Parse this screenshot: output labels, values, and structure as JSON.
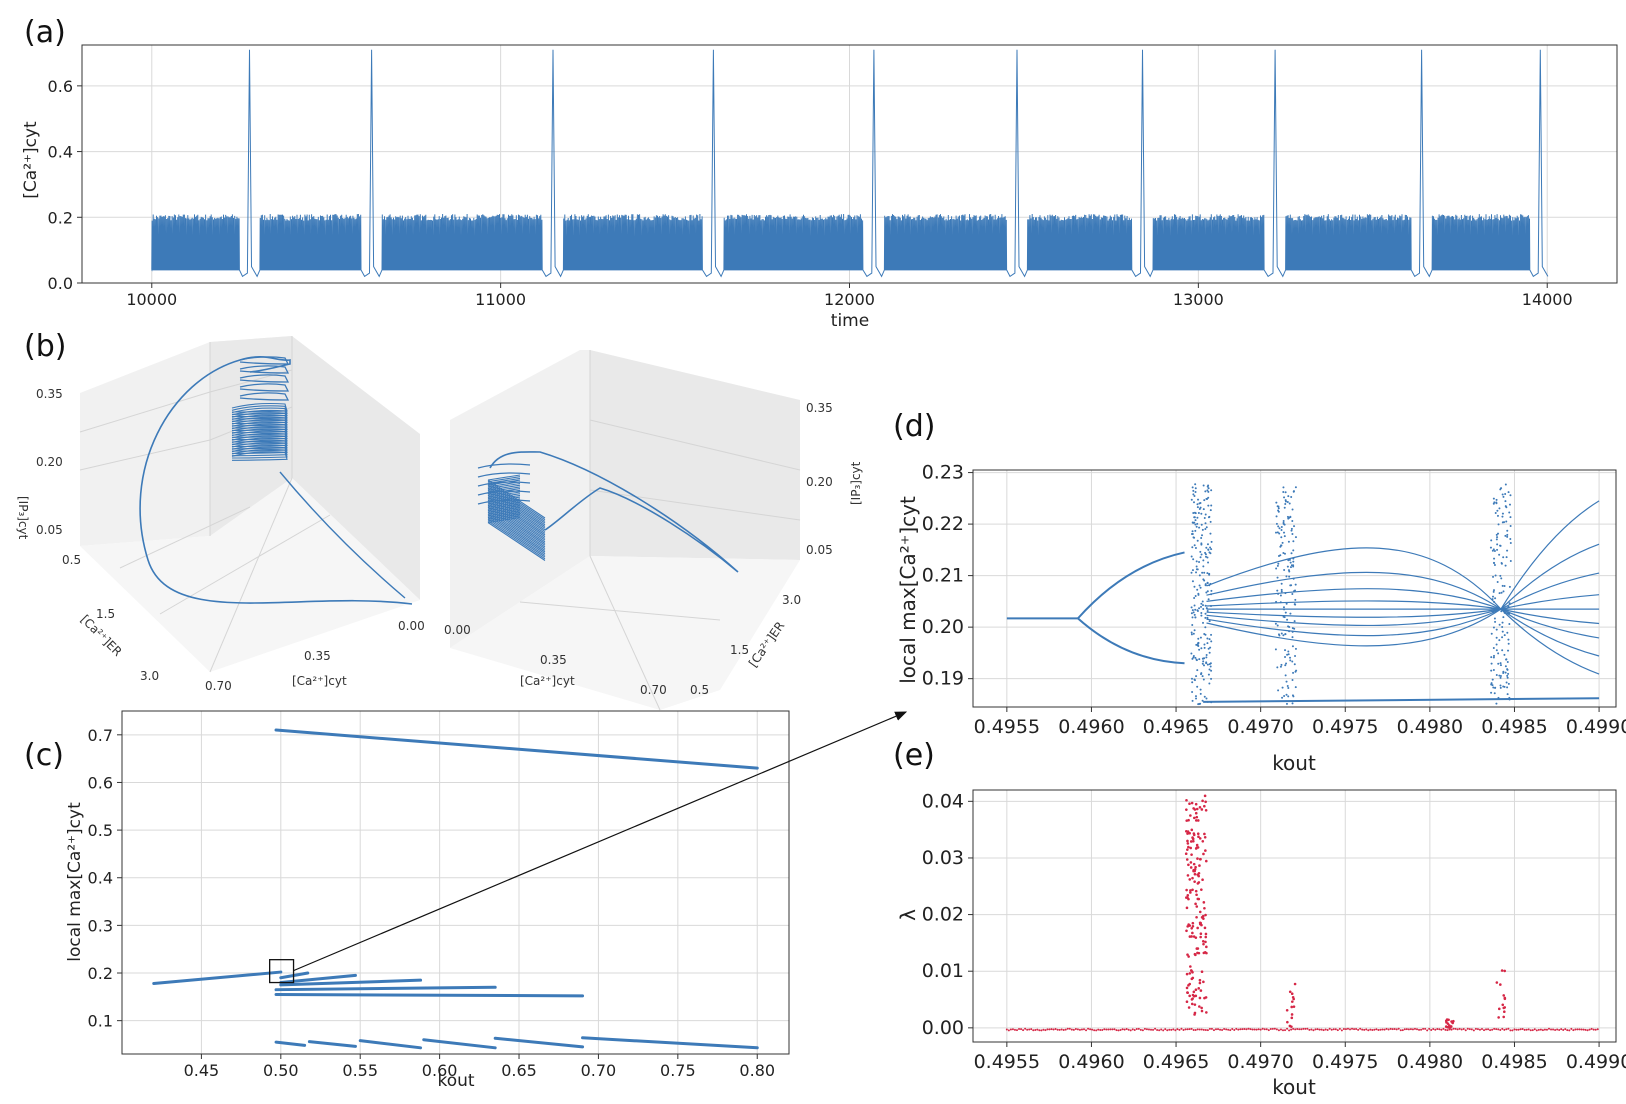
{
  "panels": {
    "a": "(a)",
    "b": "(b)",
    "c": "(c)",
    "d": "(d)",
    "e": "(e)"
  },
  "colors": {
    "series": "#3d7ab8",
    "lyapunov": "#d62746",
    "grid": "#d9d9d9"
  },
  "chart_data": [
    {
      "id": "a",
      "type": "line",
      "title": "",
      "xlabel": "time",
      "ylabel": "[Ca²⁺]cyt",
      "xlim": [
        9800,
        14200
      ],
      "ylim": [
        0.0,
        0.7
      ],
      "xticks": [
        "10000",
        "11000",
        "12000",
        "13000",
        "14000"
      ],
      "yticks": [
        "0.0",
        "0.2",
        "0.4",
        "0.6"
      ],
      "burst_spike_times": [
        10280,
        10630,
        11150,
        11610,
        12070,
        12480,
        12840,
        13220,
        13640,
        13980
      ],
      "burst_spike_peak": 0.71,
      "fast_oscillation_max": 0.2,
      "baseline": 0.04
    },
    {
      "id": "b-left",
      "type": "line",
      "xlabel": "[Ca²⁺]cyt",
      "ylabel": "[Ca²⁺]ER",
      "zlabel": "[IP₃]cyt",
      "xticks": [
        "0.70",
        "0.35",
        "0.00"
      ],
      "yticks": [
        "0.5",
        "1.5",
        "3.0"
      ],
      "zticks": [
        "0.05",
        "0.20",
        "0.35"
      ]
    },
    {
      "id": "b-right",
      "type": "line",
      "xlabel": "[Ca²⁺]cyt",
      "ylabel": "[Ca²⁺]ER",
      "zlabel": "[IP₃]cyt",
      "xticks": [
        "0.00",
        "0.35",
        "0.70"
      ],
      "yticks": [
        "0.5",
        "1.5",
        "3.0"
      ],
      "zticks": [
        "0.05",
        "0.20",
        "0.35"
      ]
    },
    {
      "id": "c",
      "type": "scatter",
      "xlabel": "kout",
      "ylabel": "local max[Ca²⁺]cyt",
      "xlim": [
        0.4,
        0.82
      ],
      "ylim": [
        0.03,
        0.75
      ],
      "xticks": [
        "0.45",
        "0.50",
        "0.55",
        "0.60",
        "0.65",
        "0.70",
        "0.75",
        "0.80"
      ],
      "yticks": [
        "0.1",
        "0.2",
        "0.3",
        "0.4",
        "0.5",
        "0.6",
        "0.7"
      ],
      "branches": [
        {
          "x0": 0.42,
          "y0": 0.178,
          "x1": 0.5,
          "y1": 0.202
        },
        {
          "x0": 0.497,
          "y0": 0.71,
          "x1": 0.8,
          "y1": 0.63
        },
        {
          "x0": 0.497,
          "y0": 0.155,
          "x1": 0.69,
          "y1": 0.152
        },
        {
          "x0": 0.497,
          "y0": 0.165,
          "x1": 0.635,
          "y1": 0.17
        },
        {
          "x0": 0.5,
          "y0": 0.175,
          "x1": 0.588,
          "y1": 0.185
        },
        {
          "x0": 0.5,
          "y0": 0.18,
          "x1": 0.547,
          "y1": 0.195
        },
        {
          "x0": 0.5,
          "y0": 0.19,
          "x1": 0.517,
          "y1": 0.2
        },
        {
          "x0": 0.497,
          "y0": 0.055,
          "x1": 0.515,
          "y1": 0.048
        },
        {
          "x0": 0.518,
          "y0": 0.056,
          "x1": 0.547,
          "y1": 0.046
        },
        {
          "x0": 0.55,
          "y0": 0.058,
          "x1": 0.588,
          "y1": 0.043
        },
        {
          "x0": 0.59,
          "y0": 0.06,
          "x1": 0.635,
          "y1": 0.043
        },
        {
          "x0": 0.635,
          "y0": 0.063,
          "x1": 0.69,
          "y1": 0.045
        },
        {
          "x0": 0.69,
          "y0": 0.064,
          "x1": 0.8,
          "y1": 0.043
        }
      ]
    },
    {
      "id": "d",
      "type": "scatter",
      "xlabel": "kout",
      "ylabel": "local max[Ca²⁺]cyt",
      "xlim": [
        0.4953,
        0.4991
      ],
      "ylim": [
        0.1845,
        0.2305
      ],
      "xticks": [
        "0.4955",
        "0.4960",
        "0.4965",
        "0.4970",
        "0.4975",
        "0.4980",
        "0.4985",
        "0.4990"
      ],
      "yticks": [
        "0.19",
        "0.20",
        "0.21",
        "0.22",
        "0.23"
      ],
      "period_doubling_at": 0.49592,
      "fixed_branch_value": 0.2017,
      "chaotic_bands": [
        0.49665,
        0.49715,
        0.49842
      ]
    },
    {
      "id": "e",
      "type": "scatter",
      "xlabel": "kout",
      "ylabel": "λ",
      "xlim": [
        0.4953,
        0.4991
      ],
      "ylim": [
        -0.0025,
        0.042
      ],
      "xticks": [
        "0.4955",
        "0.4960",
        "0.4965",
        "0.4970",
        "0.4975",
        "0.4980",
        "0.4985",
        "0.4990"
      ],
      "yticks": [
        "0.00",
        "0.01",
        "0.02",
        "0.03",
        "0.04"
      ],
      "lambda_peaks": [
        {
          "x": 0.49662,
          "max": 0.041
        },
        {
          "x": 0.49718,
          "max": 0.008
        },
        {
          "x": 0.49812,
          "max": 0.0015
        },
        {
          "x": 0.49842,
          "max": 0.0105
        }
      ]
    }
  ]
}
